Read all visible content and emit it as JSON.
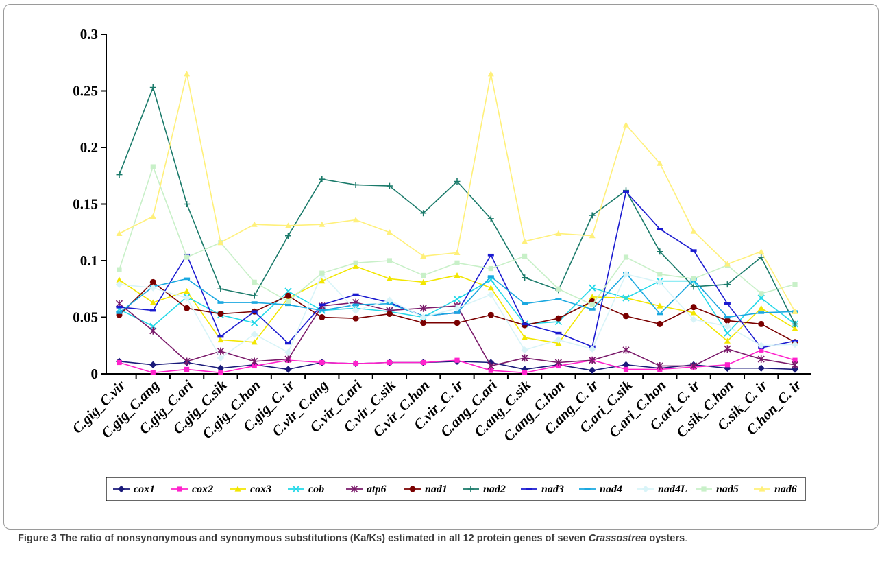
{
  "caption": {
    "figure_label": "Figure 3",
    "text_before": "The ratio of nonsynonymous and synonymous substitutions (Ka/Ks) estimated in all 12 protein genes of seven",
    "italic_word": "Crassostrea",
    "text_after": "oysters",
    "period": "."
  },
  "chart_data": {
    "type": "line",
    "title": "",
    "xlabel": "",
    "ylabel": "",
    "ylim": [
      0,
      0.3
    ],
    "yticks": [
      "0",
      "0.05",
      "0.1",
      "0.15",
      "0.2",
      "0.25",
      "0.3"
    ],
    "grid": false,
    "legend_position": "bottom",
    "categories": [
      "C.gig_C.vir",
      "C.gig_C.ang",
      "C.gig_C.ari",
      "C.gig_C.sik",
      "C.gig_C.hon",
      "C.gig_C. ir",
      "C.vir_C.ang",
      "C.vir_C.ari",
      "C.vir_C.sik",
      "C.vir_C.hon",
      "C.vir_C. ir",
      "C.ang_C.ari",
      "C.ang_C.sik",
      "C.ang_C.hon",
      "C.ang_C. ir",
      "C.ari_C.sik",
      "C.ari_C.hon",
      "C.ari_C. ir",
      "C.sik_C.hon",
      "C.sik_C. ir",
      "C.hon_C. ir"
    ],
    "series": [
      {
        "name": "cox1",
        "color": "#1a1a7a",
        "marker": "diamond",
        "values": [
          0.011,
          0.008,
          0.01,
          0.005,
          0.008,
          0.004,
          0.01,
          0.009,
          0.01,
          0.01,
          0.011,
          0.01,
          0.004,
          0.008,
          0.003,
          0.008,
          0.005,
          0.008,
          0.005,
          0.005,
          0.004
        ]
      },
      {
        "name": "cox2",
        "color": "#ff22cc",
        "marker": "square",
        "values": [
          0.01,
          0.001,
          0.004,
          0.001,
          0.007,
          0.012,
          0.01,
          0.009,
          0.01,
          0.01,
          0.012,
          0.003,
          0.001,
          0.007,
          0.012,
          0.004,
          0.004,
          0.006,
          0.008,
          0.021,
          0.012
        ]
      },
      {
        "name": "cox3",
        "color": "#f2e600",
        "marker": "triangle",
        "values": [
          0.083,
          0.063,
          0.073,
          0.03,
          0.028,
          0.067,
          0.082,
          0.095,
          0.084,
          0.081,
          0.087,
          0.076,
          0.032,
          0.027,
          0.068,
          0.067,
          0.06,
          0.054,
          0.029,
          0.058,
          0.04
        ]
      },
      {
        "name": "cob",
        "color": "#22d8e8",
        "marker": "x",
        "values": [
          0.057,
          0.042,
          0.068,
          0.052,
          0.045,
          0.073,
          0.056,
          0.058,
          0.055,
          0.05,
          0.066,
          0.083,
          0.044,
          0.046,
          0.076,
          0.067,
          0.082,
          0.082,
          0.036,
          0.067,
          0.044
        ]
      },
      {
        "name": "atp6",
        "color": "#7a1a6a",
        "marker": "star",
        "values": [
          0.062,
          0.038,
          0.011,
          0.02,
          0.011,
          0.013,
          0.06,
          0.063,
          0.056,
          0.058,
          0.06,
          0.007,
          0.014,
          0.01,
          0.012,
          0.021,
          0.007,
          0.007,
          0.022,
          0.013,
          0.008
        ]
      },
      {
        "name": "nad1",
        "color": "#7a0000",
        "marker": "circle",
        "values": [
          0.052,
          0.081,
          0.058,
          0.053,
          0.055,
          0.069,
          0.05,
          0.049,
          0.053,
          0.045,
          0.045,
          0.052,
          0.043,
          0.049,
          0.064,
          0.051,
          0.044,
          0.059,
          0.047,
          0.044,
          0.028
        ]
      },
      {
        "name": "nad2",
        "color": "#1a7a6a",
        "marker": "plus",
        "values": [
          0.176,
          0.253,
          0.15,
          0.075,
          0.069,
          0.122,
          0.172,
          0.167,
          0.166,
          0.142,
          0.17,
          0.137,
          0.085,
          0.074,
          0.14,
          0.162,
          0.108,
          0.077,
          0.079,
          0.103,
          0.044
        ]
      },
      {
        "name": "nad3",
        "color": "#1a1ad0",
        "marker": "dash",
        "values": [
          0.059,
          0.056,
          0.105,
          0.033,
          0.055,
          0.027,
          0.061,
          0.07,
          0.063,
          0.051,
          0.054,
          0.105,
          0.044,
          0.036,
          0.024,
          0.161,
          0.128,
          0.109,
          0.062,
          0.023,
          0.029
        ]
      },
      {
        "name": "nad4",
        "color": "#1aa8e0",
        "marker": "dash",
        "values": [
          0.054,
          0.077,
          0.084,
          0.063,
          0.063,
          0.061,
          0.056,
          0.061,
          0.062,
          0.051,
          0.054,
          0.086,
          0.062,
          0.066,
          0.057,
          0.089,
          0.053,
          0.083,
          0.05,
          0.054,
          0.055
        ]
      },
      {
        "name": "nad4L",
        "color": "#d8f4f8",
        "marker": "diamond",
        "values": [
          0.079,
          0.076,
          0.067,
          0.014,
          0.035,
          0.019,
          0.088,
          0.056,
          0.065,
          0.05,
          0.058,
          0.07,
          0.021,
          0.03,
          0.022,
          0.088,
          0.081,
          0.048,
          0.042,
          0.025,
          0.026
        ]
      },
      {
        "name": "nad5",
        "color": "#c8f0c8",
        "marker": "square",
        "values": [
          0.092,
          0.183,
          0.103,
          0.116,
          0.081,
          0.064,
          0.089,
          0.098,
          0.1,
          0.087,
          0.098,
          0.093,
          0.104,
          0.075,
          0.061,
          0.103,
          0.088,
          0.084,
          0.096,
          0.071,
          0.079
        ]
      },
      {
        "name": "nad6",
        "color": "#fff07a",
        "marker": "triangle",
        "values": [
          0.124,
          0.139,
          0.265,
          0.116,
          0.132,
          0.131,
          0.132,
          0.136,
          0.125,
          0.104,
          0.107,
          0.265,
          0.117,
          0.124,
          0.122,
          0.22,
          0.186,
          0.126,
          0.097,
          0.108,
          0.055
        ]
      }
    ]
  }
}
